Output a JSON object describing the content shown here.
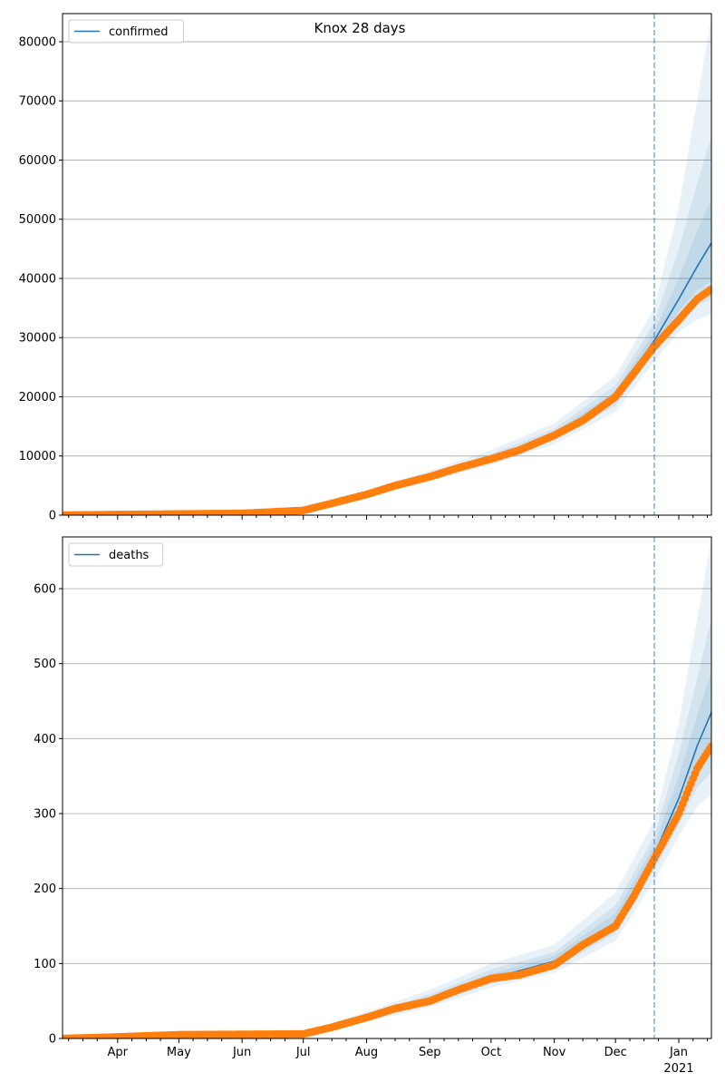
{
  "title": "Knox 28 days",
  "colors": {
    "model": "#1f77b4",
    "observed": "#ff7f0e",
    "band": "#1f77b4",
    "vline": "#1f77b4",
    "grid": "#b0b0b0"
  },
  "chart_data": [
    {
      "type": "line",
      "legend": "confirmed",
      "legend_position": "top-left",
      "xlim": [
        "2020-03-05",
        "2021-01-17"
      ],
      "ylim": [
        0,
        84750
      ],
      "yticks": [
        0,
        10000,
        20000,
        30000,
        40000,
        50000,
        60000,
        70000,
        80000
      ],
      "grid": "y",
      "forecast_start": "2020-12-20",
      "model_dates": [
        "2020-03-05",
        "2020-07-01",
        "2020-08-01",
        "2020-09-01",
        "2020-10-01",
        "2020-11-01",
        "2020-12-01",
        "2020-12-20",
        "2021-01-01",
        "2021-01-10",
        "2021-01-17"
      ],
      "model": [
        0,
        800,
        3500,
        6500,
        9500,
        13500,
        20000,
        29500,
        36500,
        42000,
        46000
      ],
      "bands": [
        {
          "lo": [
            0,
            700,
            3000,
            5700,
            8500,
            12000,
            17500,
            26000,
            31000,
            33000,
            34000
          ],
          "hi": [
            0,
            900,
            4200,
            7500,
            11000,
            15500,
            23500,
            35000,
            52000,
            70000,
            84000
          ]
        },
        {
          "lo": [
            0,
            750,
            3200,
            6000,
            9000,
            12700,
            18500,
            27500,
            33000,
            35500,
            36500
          ],
          "hi": [
            0,
            850,
            3900,
            7100,
            10300,
            14600,
            22000,
            32500,
            45000,
            56000,
            64000
          ]
        },
        {
          "lo": [
            0,
            780,
            3350,
            6250,
            9250,
            13100,
            19300,
            28500,
            34500,
            38000,
            39500
          ],
          "hi": [
            0,
            820,
            3650,
            6750,
            9750,
            14000,
            21000,
            31000,
            40000,
            48000,
            53500
          ]
        }
      ],
      "observed_dates": [
        "2020-03-05",
        "2020-04-01",
        "2020-05-01",
        "2020-06-01",
        "2020-07-01",
        "2020-07-15",
        "2020-08-01",
        "2020-08-15",
        "2020-09-01",
        "2020-09-15",
        "2020-10-01",
        "2020-10-15",
        "2020-11-01",
        "2020-11-15",
        "2020-12-01",
        "2020-12-10",
        "2020-12-20",
        "2021-01-01",
        "2021-01-10",
        "2021-01-17"
      ],
      "observed": [
        0,
        100,
        200,
        300,
        800,
        2000,
        3500,
        5000,
        6500,
        8000,
        9500,
        11000,
        13500,
        16000,
        20000,
        24000,
        28500,
        33000,
        36500,
        38200
      ]
    },
    {
      "type": "line",
      "legend": "deaths",
      "legend_position": "top-left",
      "xlim": [
        "2020-03-05",
        "2021-01-17"
      ],
      "ylim": [
        0,
        669
      ],
      "yticks": [
        0,
        100,
        200,
        300,
        400,
        500,
        600
      ],
      "grid": "y",
      "forecast_start": "2020-12-20",
      "xtick_labels": [
        "Apr",
        "May",
        "Jun",
        "Jul",
        "Aug",
        "Sep",
        "Oct",
        "Nov",
        "Dec",
        "Jan"
      ],
      "xtick_dates": [
        "2020-04-01",
        "2020-05-01",
        "2020-06-01",
        "2020-07-01",
        "2020-08-01",
        "2020-09-01",
        "2020-10-01",
        "2020-11-01",
        "2020-12-01",
        "2021-01-01"
      ],
      "year_label": "2021",
      "model_dates": [
        "2020-03-05",
        "2020-07-01",
        "2020-08-01",
        "2020-09-01",
        "2020-10-01",
        "2020-11-01",
        "2020-12-01",
        "2020-12-20",
        "2021-01-01",
        "2021-01-10",
        "2021-01-17"
      ],
      "model": [
        0,
        6,
        28,
        52,
        80,
        103,
        155,
        245,
        320,
        390,
        435
      ],
      "bands": [
        {
          "lo": [
            0,
            5,
            22,
            42,
            68,
            88,
            130,
            210,
            270,
            310,
            325
          ],
          "hi": [
            0,
            8,
            36,
            65,
            100,
            125,
            195,
            290,
            420,
            560,
            665
          ]
        },
        {
          "lo": [
            0,
            5.5,
            25,
            46,
            73,
            94,
            140,
            225,
            285,
            335,
            355
          ],
          "hi": [
            0,
            7,
            32,
            59,
            92,
            115,
            178,
            270,
            380,
            480,
            560
          ]
        },
        {
          "lo": [
            0,
            5.7,
            26,
            49,
            76,
            98,
            147,
            235,
            300,
            360,
            390
          ],
          "hi": [
            0,
            6.5,
            30,
            56,
            86,
            110,
            167,
            258,
            350,
            430,
            490
          ]
        }
      ],
      "observed_dates": [
        "2020-03-05",
        "2020-04-01",
        "2020-05-01",
        "2020-07-01",
        "2020-07-15",
        "2020-08-01",
        "2020-08-15",
        "2020-09-01",
        "2020-09-15",
        "2020-10-01",
        "2020-10-15",
        "2020-11-01",
        "2020-11-15",
        "2020-12-01",
        "2020-12-10",
        "2020-12-20",
        "2021-01-01",
        "2021-01-10",
        "2021-01-17"
      ],
      "observed": [
        0,
        2,
        5,
        6,
        15,
        28,
        40,
        50,
        65,
        80,
        85,
        98,
        125,
        150,
        190,
        240,
        300,
        360,
        390
      ]
    }
  ]
}
